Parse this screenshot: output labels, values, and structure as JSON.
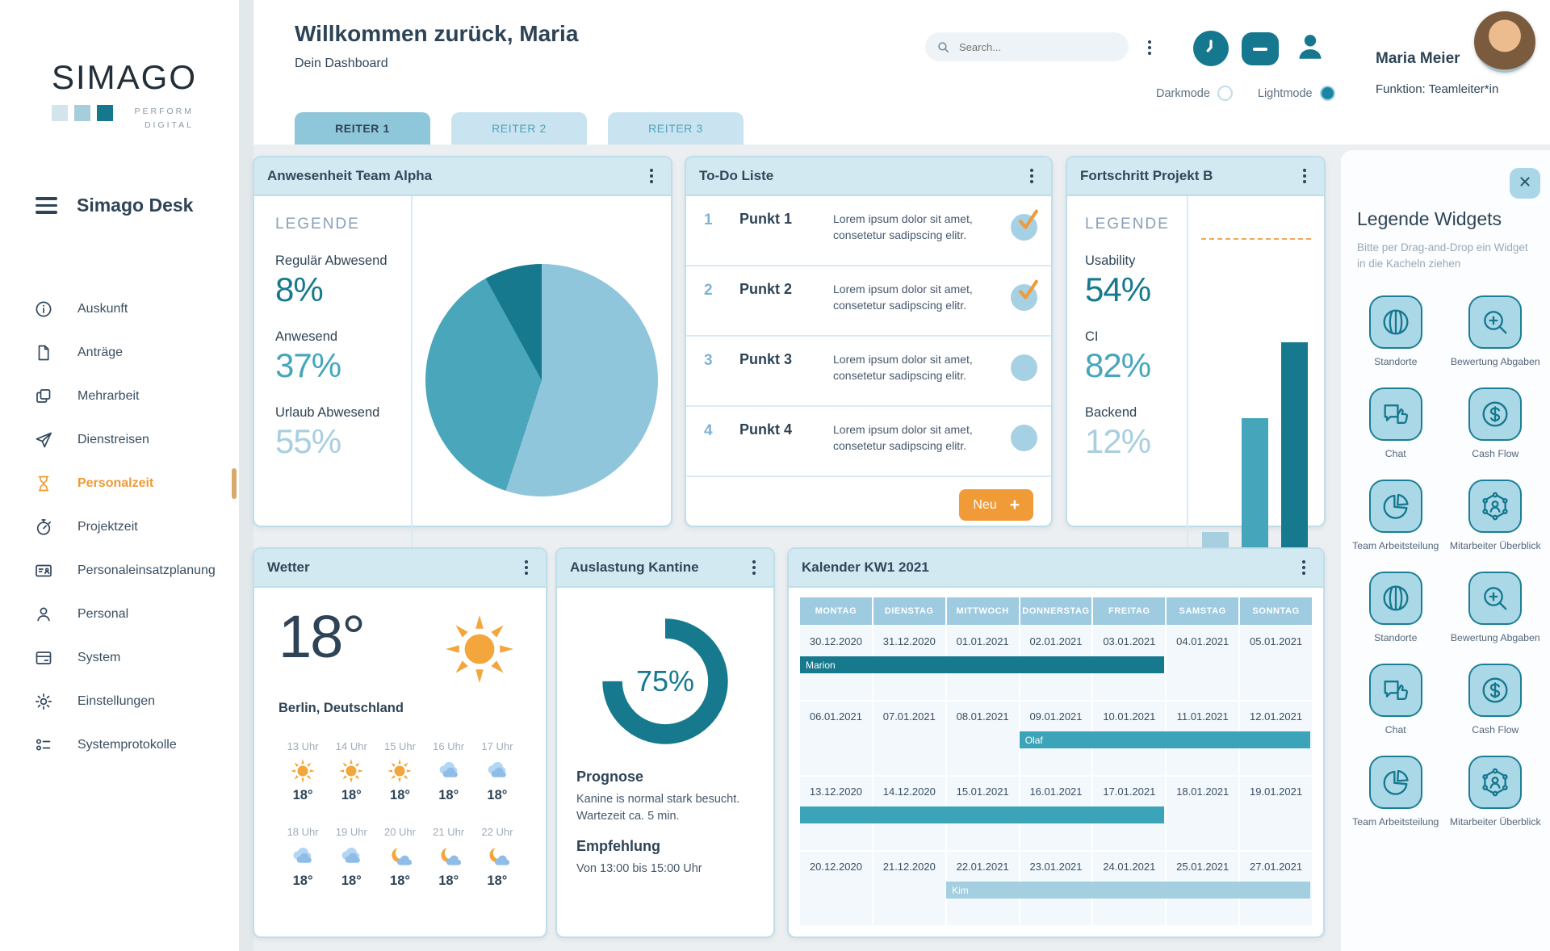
{
  "colors": {
    "accent_orange": "#F09B38",
    "teal_dark": "#16798E",
    "teal_mid": "#45A6BB",
    "blue_light": "#A8CFE0",
    "card_header": "#D3E9F2"
  },
  "brand": {
    "name": "SIMAGO",
    "tagline_line1": "PERFORM",
    "tagline_line2": "DIGITAL",
    "app": "Simago Desk"
  },
  "sidebar": {
    "items": [
      {
        "icon": "info-icon",
        "label": "Auskunft",
        "state": ""
      },
      {
        "icon": "document-icon",
        "label": "Anträge",
        "state": ""
      },
      {
        "icon": "copy-icon",
        "label": "Mehrarbeit",
        "state": ""
      },
      {
        "icon": "send-icon",
        "label": "Dienstreisen",
        "state": ""
      },
      {
        "icon": "hourglass-icon",
        "label": "Personalzeit",
        "state": "active"
      },
      {
        "icon": "stopwatch-icon",
        "label": "Projektzeit",
        "state": ""
      },
      {
        "icon": "idcard-icon",
        "label": "Personaleinsatzplanung",
        "state": ""
      },
      {
        "icon": "person-icon",
        "label": "Personal",
        "state": ""
      },
      {
        "icon": "system-icon",
        "label": "System",
        "state": ""
      },
      {
        "icon": "gear-icon",
        "label": "Einstellungen",
        "state": ""
      },
      {
        "icon": "protocol-icon",
        "label": "Systemprotokolle",
        "state": ""
      }
    ]
  },
  "header": {
    "welcome": "Willkommen zurück, Maria",
    "subtitle": "Dein Dashboard",
    "search_placeholder": "Search...",
    "darkmode": "Darkmode",
    "lightmode": "Lightmode",
    "user_name": "Maria Meier",
    "user_role": "Funktion: Teamleiter*in"
  },
  "tabs": [
    {
      "label": "REITER 1",
      "state": "active"
    },
    {
      "label": "REITER 2",
      "state": "inactive"
    },
    {
      "label": "REITER 3",
      "state": "inactive"
    }
  ],
  "widgets": {
    "attendance": {
      "title": "Anwesenheit Team Alpha",
      "legend_title": "LEGENDE",
      "legend": [
        {
          "label": "Regulär Abwesend",
          "value": "8%",
          "tone": "tone-dark"
        },
        {
          "label": "Anwesend",
          "value": "37%",
          "tone": "tone-mid"
        },
        {
          "label": "Urlaub Abwesend",
          "value": "55%",
          "tone": "tone-light"
        }
      ]
    },
    "todo": {
      "title": "To-Do Liste",
      "new_label": "Neu",
      "new_plus": "+",
      "items": [
        {
          "num": "1",
          "title": "Punkt 1",
          "text": "Lorem ipsum dolor sit amet, consetetur sadipscing elitr.",
          "done": true
        },
        {
          "num": "2",
          "title": "Punkt 2",
          "text": "Lorem ipsum dolor sit amet, consetetur sadipscing elitr.",
          "done": true
        },
        {
          "num": "3",
          "title": "Punkt 3",
          "text": "Lorem ipsum dolor sit amet, consetetur sadipscing elitr.",
          "done": false
        },
        {
          "num": "4",
          "title": "Punkt 4",
          "text": "Lorem ipsum dolor sit amet, consetetur sadipscing elitr.",
          "done": false
        }
      ]
    },
    "progress": {
      "title": "Fortschritt Projekt B",
      "legend_title": "LEGENDE",
      "legend": [
        {
          "label": "Usability",
          "value": "54%",
          "tone": "tone-dark"
        },
        {
          "label": "CI",
          "value": "82%",
          "tone": "tone-mid"
        },
        {
          "label": "Backend",
          "value": "12%",
          "tone": "tone-light"
        }
      ]
    },
    "weather": {
      "title": "Wetter",
      "temp": "18°",
      "location": "Berlin, Deutschland",
      "hours": [
        {
          "time": "13 Uhr",
          "icon": "sun-icon",
          "temp": "18°"
        },
        {
          "time": "14 Uhr",
          "icon": "sun-icon",
          "temp": "18°"
        },
        {
          "time": "15 Uhr",
          "icon": "sun-icon",
          "temp": "18°"
        },
        {
          "time": "16 Uhr",
          "icon": "cloud-icon",
          "temp": "18°"
        },
        {
          "time": "17 Uhr",
          "icon": "cloud-icon",
          "temp": "18°"
        },
        {
          "time": "18 Uhr",
          "icon": "cloud-icon",
          "temp": "18°"
        },
        {
          "time": "19 Uhr",
          "icon": "cloud-icon",
          "temp": "18°"
        },
        {
          "time": "20 Uhr",
          "icon": "moon-cloud-icon",
          "temp": "18°"
        },
        {
          "time": "21 Uhr",
          "icon": "moon-cloud-icon",
          "temp": "18°"
        },
        {
          "time": "22 Uhr",
          "icon": "moon-cloud-icon",
          "temp": "18°"
        }
      ]
    },
    "canteen": {
      "title": "Auslastung Kantine",
      "percent": "75%",
      "prognosis_title": "Prognose",
      "prognosis_text": "Kanine is normal stark besucht. Wartezeit ca. 5 min.",
      "recommendation_title": "Empfehlung",
      "recommendation_text": "Von 13:00 bis 15:00 Uhr"
    },
    "calendar": {
      "title": "Kalender KW1 2021",
      "days": [
        "MONTAG",
        "DIENSTAG",
        "MITTWOCH",
        "DONNERSTAG",
        "FREITAG",
        "SAMSTAG",
        "SONNTAG"
      ],
      "weeks": [
        {
          "dates": [
            "30.12.2020",
            "31.12.2020",
            "01.01.2021",
            "02.01.2021",
            "03.01.2021",
            "04.01.2021",
            "05.01.2021"
          ],
          "event": {
            "name": "Marion",
            "start": 1,
            "span": 5,
            "tone": "ev-dark"
          }
        },
        {
          "dates": [
            "06.01.2021",
            "07.01.2021",
            "08.01.2021",
            "09.01.2021",
            "10.01.2021",
            "11.01.2021",
            "12.01.2021"
          ],
          "event": {
            "name": "Olaf",
            "start": 4,
            "span": 4,
            "tone": "ev-mid"
          }
        },
        {
          "dates": [
            "13.12.2020",
            "14.12.2020",
            "15.01.2021",
            "16.01.2021",
            "17.01.2021",
            "18.01.2021",
            "19.01.2021"
          ],
          "event": {
            "name": "",
            "start": 1,
            "span": 5,
            "tone": "ev-mid"
          }
        },
        {
          "dates": [
            "20.12.2020",
            "21.12.2020",
            "22.01.2021",
            "23.01.2021",
            "24.01.2021",
            "25.01.2021",
            "27.01.2021"
          ],
          "event": {
            "name": "Kim",
            "start": 3,
            "span": 5,
            "tone": "ev-light"
          }
        }
      ]
    }
  },
  "panel": {
    "title": "Legende Widgets",
    "subtitle": "Bitte per Drag-and-Drop ein Widget in die Kacheln ziehen",
    "tiles": [
      {
        "icon": "globe-icon",
        "label": "Standorte"
      },
      {
        "icon": "zoom-plus-icon",
        "label": "Bewertung Abgaben"
      },
      {
        "icon": "chat-icon",
        "label": "Chat"
      },
      {
        "icon": "cashflow-icon",
        "label": "Cash Flow"
      },
      {
        "icon": "piechart-icon",
        "label": "Team Arbeitsteilung"
      },
      {
        "icon": "network-icon",
        "label": "Mitarbeiter Überblick"
      },
      {
        "icon": "globe-icon",
        "label": "Standorte"
      },
      {
        "icon": "zoom-plus-icon",
        "label": "Bewertung Abgaben"
      },
      {
        "icon": "chat-icon",
        "label": "Chat"
      },
      {
        "icon": "cashflow-icon",
        "label": "Cash Flow"
      },
      {
        "icon": "piechart-icon",
        "label": "Team Arbeitsteilung"
      },
      {
        "icon": "network-icon",
        "label": "Mitarbeiter Überblick"
      }
    ]
  },
  "chart_data": [
    {
      "type": "pie",
      "title": "Anwesenheit Team Alpha",
      "labels": [
        "Urlaub Abwesend",
        "Anwesend",
        "Regulär Abwesend"
      ],
      "values": [
        55,
        37,
        8
      ],
      "colors": [
        "#8FC6DB",
        "#4AA6BA",
        "#17798E"
      ],
      "legend_position": "left"
    },
    {
      "type": "bar",
      "title": "Fortschritt Projekt B",
      "categories": [
        "Backend",
        "Usability",
        "CI"
      ],
      "values": [
        12,
        54,
        82
      ],
      "colors": [
        "#A8CFE0",
        "#45A6BB",
        "#16798E"
      ],
      "ylim": [
        0,
        100
      ],
      "target_line": 100
    },
    {
      "type": "donut",
      "title": "Auslastung Kantine",
      "value": 75,
      "max": 100,
      "color": "#16798E"
    }
  ]
}
